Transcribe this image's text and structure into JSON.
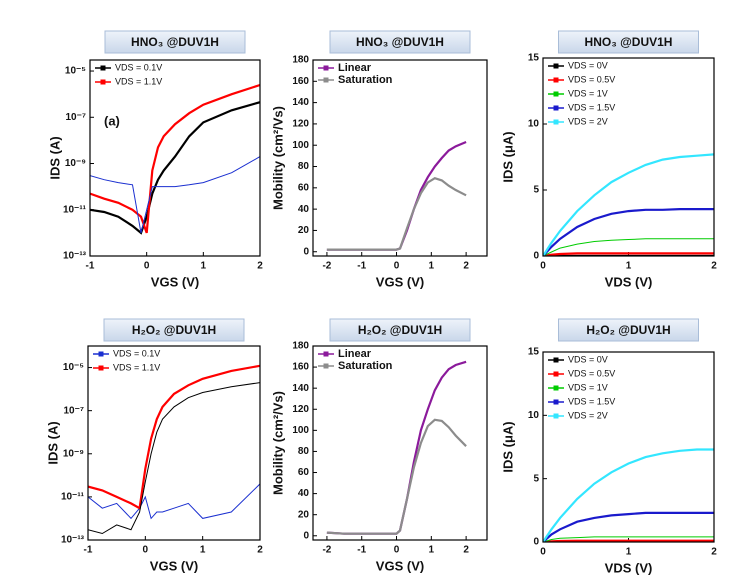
{
  "chart_data": [
    {
      "type": "line",
      "title": "HNO₃ @DUV1H",
      "xlabel": "VGS (V)",
      "ylabel": "IDS (A)",
      "annotation": "(a)",
      "log_y": true,
      "legend": "upper left",
      "x": [
        -1,
        -0.75,
        -0.5,
        -0.25,
        -0.1,
        0,
        0.1,
        0.2,
        0.3,
        0.5,
        0.75,
        1,
        1.5,
        2
      ],
      "xlim": [
        -1,
        2
      ],
      "xticks": [
        -1,
        0,
        1,
        2
      ],
      "ylim": [
        1e-13,
        3e-05
      ],
      "yticks": [
        {
          "value": 1e-13,
          "label": "10⁻¹³"
        },
        {
          "value": 1e-11,
          "label": "10⁻¹¹"
        },
        {
          "value": 1e-09,
          "label": "10⁻⁹"
        },
        {
          "value": 1e-07,
          "label": "10⁻⁷"
        },
        {
          "value": 1e-05,
          "label": "10⁻⁵"
        }
      ],
      "series": [
        {
          "name": "VDS = 0.1V",
          "color": "#000000",
          "values": [
            1e-11,
            8e-12,
            5e-12,
            2e-12,
            1e-12,
            5e-12,
            5e-11,
            2e-10,
            5e-10,
            2e-09,
            1.5e-08,
            6e-08,
            2e-07,
            4.5e-07
          ]
        },
        {
          "name": "VDS = 1.1V",
          "color": "#ff0000",
          "values": [
            5e-11,
            3e-11,
            2e-11,
            1e-11,
            5e-12,
            1e-12,
            5e-10,
            5e-09,
            1.5e-08,
            5e-08,
            1.5e-07,
            3.5e-07,
            1e-06,
            2.5e-06
          ]
        },
        {
          "color": "#1a2fd0",
          "values": [
            3e-10,
            2e-10,
            1.5e-10,
            1.2e-10,
            1e-12,
            1e-11,
            1e-10,
            1e-10,
            1e-10,
            1e-10,
            1.2e-10,
            1.5e-10,
            4e-10,
            2e-09
          ]
        }
      ]
    },
    {
      "type": "line",
      "title": "HNO₃ @DUV1H",
      "xlabel": "VGS (V)",
      "ylabel": "Mobility (cm²/Vs)",
      "legend": "upper left",
      "x": [
        -2,
        -1.5,
        -1,
        -0.5,
        0,
        0.1,
        0.3,
        0.5,
        0.7,
        0.9,
        1.1,
        1.3,
        1.5,
        1.7,
        2
      ],
      "xlim": [
        -2.4,
        2.6
      ],
      "xticks": [
        -2,
        -1,
        0,
        1,
        2
      ],
      "ylim": [
        -4,
        180
      ],
      "yticks": [
        0,
        20,
        40,
        60,
        80,
        100,
        120,
        140,
        160,
        180
      ],
      "series": [
        {
          "name": "Linear",
          "color": "#8b1a9b",
          "values": [
            2,
            2,
            2,
            2,
            2,
            3,
            20,
            40,
            58,
            70,
            80,
            88,
            95,
            99,
            103
          ]
        },
        {
          "name": "Saturation",
          "color": "#8c8c8c",
          "values": [
            2,
            2,
            2,
            2,
            2,
            3,
            22,
            40,
            55,
            65,
            69,
            67,
            62,
            58,
            53
          ]
        }
      ]
    },
    {
      "type": "line",
      "title": "HNO₃ @DUV1H",
      "xlabel": "VDS (V)",
      "ylabel": "IDS (μA)",
      "legend": "upper left",
      "x": [
        0,
        0.1,
        0.2,
        0.4,
        0.6,
        0.8,
        1,
        1.2,
        1.4,
        1.6,
        1.8,
        2
      ],
      "xlim": [
        0,
        2
      ],
      "xticks": [
        0,
        1,
        2
      ],
      "ylim": [
        0,
        15
      ],
      "yticks": [
        0,
        5,
        10,
        15
      ],
      "series": [
        {
          "name": "VDS = 0V",
          "color": "#000000",
          "values": [
            0,
            0,
            0,
            0,
            0,
            0,
            0,
            0,
            0,
            0,
            0,
            0
          ]
        },
        {
          "name": "VDS = 0.5V",
          "color": "#ff0000",
          "values": [
            0,
            0.1,
            0.15,
            0.2,
            0.2,
            0.2,
            0.2,
            0.2,
            0.2,
            0.2,
            0.2,
            0.2
          ]
        },
        {
          "name": "VDS = 1V",
          "color": "#00cc00",
          "values": [
            0,
            0.3,
            0.6,
            0.9,
            1.1,
            1.2,
            1.25,
            1.3,
            1.3,
            1.3,
            1.3,
            1.3
          ]
        },
        {
          "name": "VDS = 1.5V",
          "color": "#1a1acc",
          "values": [
            0,
            0.7,
            1.3,
            2.2,
            2.8,
            3.2,
            3.4,
            3.5,
            3.5,
            3.55,
            3.55,
            3.55
          ]
        },
        {
          "name": "VDS = 2V",
          "color": "#33e6ff",
          "values": [
            0,
            1,
            1.9,
            3.4,
            4.6,
            5.6,
            6.3,
            6.9,
            7.3,
            7.5,
            7.6,
            7.7
          ]
        }
      ]
    },
    {
      "type": "line",
      "title": "H₂O₂ @DUV1H",
      "xlabel": "VGS (V)",
      "ylabel": "IDS (A)",
      "log_y": true,
      "legend": "upper left",
      "x": [
        -1,
        -0.75,
        -0.5,
        -0.25,
        -0.1,
        0,
        0.1,
        0.2,
        0.3,
        0.5,
        0.75,
        1,
        1.5,
        2
      ],
      "xlim": [
        -1,
        2
      ],
      "xticks": [
        -1,
        0,
        1,
        2
      ],
      "ylim": [
        1e-13,
        0.0001
      ],
      "yticks": [
        {
          "value": 1e-13,
          "label": "10⁻¹³"
        },
        {
          "value": 1e-11,
          "label": "10⁻¹¹"
        },
        {
          "value": 1e-09,
          "label": "10⁻⁹"
        },
        {
          "value": 1e-07,
          "label": "10⁻⁷"
        },
        {
          "value": 1e-05,
          "label": "10⁻⁵"
        }
      ],
      "series": [
        {
          "name": "VDS = 0.1V",
          "color": "#1a2fd0",
          "values": [
            1e-11,
            3e-12,
            5e-12,
            1e-12,
            3e-12,
            1e-11,
            1e-12,
            2e-12,
            2e-12,
            3e-12,
            5e-12,
            1e-12,
            2e-12,
            4e-11
          ]
        },
        {
          "name": "VDS = 1.1V",
          "color": "#ff0000",
          "values": [
            3e-11,
            2e-11,
            1e-11,
            5e-12,
            3e-12,
            2e-10,
            5e-09,
            4e-08,
            1.5e-07,
            6e-07,
            1.5e-06,
            3e-06,
            7e-06,
            1.2e-05
          ]
        },
        {
          "color": "#000000",
          "values": [
            3e-13,
            2e-13,
            5e-13,
            3e-13,
            2e-12,
            5e-11,
            1e-09,
            1e-08,
            4e-08,
            1.5e-07,
            4e-07,
            7e-07,
            1.3e-06,
            2e-06
          ]
        }
      ]
    },
    {
      "type": "line",
      "title": "H₂O₂ @DUV1H",
      "xlabel": "VGS (V)",
      "ylabel": "Mobility (cm²/Vs)",
      "legend": "upper left",
      "x": [
        -2,
        -1.5,
        -1,
        -0.5,
        0,
        0.1,
        0.3,
        0.5,
        0.7,
        0.9,
        1.1,
        1.3,
        1.5,
        1.7,
        2
      ],
      "xlim": [
        -2.4,
        2.6
      ],
      "xticks": [
        -2,
        -1,
        0,
        1,
        2
      ],
      "ylim": [
        -4,
        180
      ],
      "yticks": [
        0,
        20,
        40,
        60,
        80,
        100,
        120,
        140,
        160,
        180
      ],
      "series": [
        {
          "name": "Linear",
          "color": "#8b1a9b",
          "values": [
            3,
            2,
            2,
            2,
            2,
            5,
            35,
            70,
            100,
            120,
            138,
            150,
            158,
            162,
            165
          ]
        },
        {
          "name": "Saturation",
          "color": "#8c8c8c",
          "values": [
            3,
            2,
            2,
            2,
            2,
            5,
            35,
            65,
            88,
            104,
            110,
            109,
            103,
            95,
            85
          ]
        }
      ]
    },
    {
      "type": "line",
      "title": "H₂O₂ @DUV1H",
      "xlabel": "VDS (V)",
      "ylabel": "IDS (μA)",
      "legend": "upper left",
      "x": [
        0,
        0.1,
        0.2,
        0.4,
        0.6,
        0.8,
        1,
        1.2,
        1.4,
        1.6,
        1.8,
        2
      ],
      "xlim": [
        0,
        2
      ],
      "xticks": [
        0,
        1,
        2
      ],
      "ylim": [
        0,
        15
      ],
      "yticks": [
        0,
        5,
        10,
        15
      ],
      "series": [
        {
          "name": "VDS = 0V",
          "color": "#000000",
          "values": [
            0,
            0,
            0,
            0,
            0,
            0,
            0,
            0,
            0,
            0,
            0,
            0
          ]
        },
        {
          "name": "VDS = 0.5V",
          "color": "#ff0000",
          "values": [
            0,
            0.05,
            0.08,
            0.1,
            0.1,
            0.1,
            0.1,
            0.1,
            0.1,
            0.1,
            0.1,
            0.1
          ]
        },
        {
          "name": "VDS = 1V",
          "color": "#00cc00",
          "values": [
            0,
            0.2,
            0.3,
            0.35,
            0.4,
            0.4,
            0.4,
            0.4,
            0.4,
            0.4,
            0.4,
            0.4
          ]
        },
        {
          "name": "VDS = 1.5V",
          "color": "#1a1acc",
          "values": [
            0,
            0.6,
            1,
            1.6,
            1.9,
            2.1,
            2.2,
            2.3,
            2.3,
            2.3,
            2.3,
            2.3
          ]
        },
        {
          "name": "VDS = 2V",
          "color": "#33e6ff",
          "values": [
            0,
            1,
            1.9,
            3.4,
            4.6,
            5.5,
            6.2,
            6.7,
            7,
            7.2,
            7.3,
            7.3
          ]
        }
      ]
    }
  ]
}
